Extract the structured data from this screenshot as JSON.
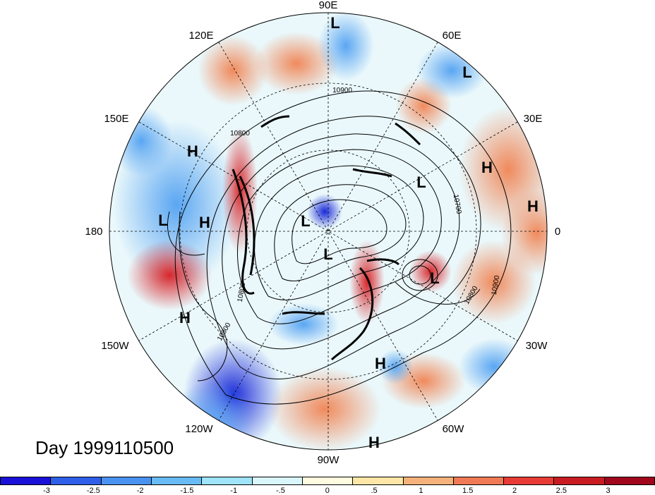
{
  "title": "Day 1999110500",
  "longitude_labels": [
    {
      "text": "90E",
      "id": "lon-90e"
    },
    {
      "text": "60E",
      "id": "lon-60e"
    },
    {
      "text": "30E",
      "id": "lon-30e"
    },
    {
      "text": "0",
      "id": "lon-0"
    },
    {
      "text": "30W",
      "id": "lon-30w"
    },
    {
      "text": "60W",
      "id": "lon-60w"
    },
    {
      "text": "90W",
      "id": "lon-90w"
    },
    {
      "text": "120W",
      "id": "lon-120w"
    },
    {
      "text": "150W",
      "id": "lon-150w"
    },
    {
      "text": "180",
      "id": "lon-180"
    },
    {
      "text": "150E",
      "id": "lon-150e"
    },
    {
      "text": "120E",
      "id": "lon-120e"
    }
  ],
  "pressure_centers": [
    "L",
    "L",
    "H",
    "L",
    "H",
    "L",
    "H",
    "L",
    "H",
    "H",
    "L",
    "L",
    "H",
    "H"
  ],
  "contour_labels": [
    "10900",
    "10800",
    "10700",
    "10800",
    "10900",
    "10800",
    "10800"
  ],
  "colorbar": {
    "colors": [
      "#1a10d8",
      "#2f5fe8",
      "#4a92f0",
      "#68bbf5",
      "#9fe4f9",
      "#d9f6fb",
      "#fffbe0",
      "#fde6a6",
      "#f6b27a",
      "#ef7a55",
      "#e83b36",
      "#c81c22",
      "#a0061c"
    ],
    "tick_labels": [
      "-3",
      "-2.5",
      "-2",
      "-1.5",
      "-1",
      "-.5",
      "0",
      ".5",
      "1",
      "1.5",
      "2",
      "2.5",
      "3"
    ]
  }
}
